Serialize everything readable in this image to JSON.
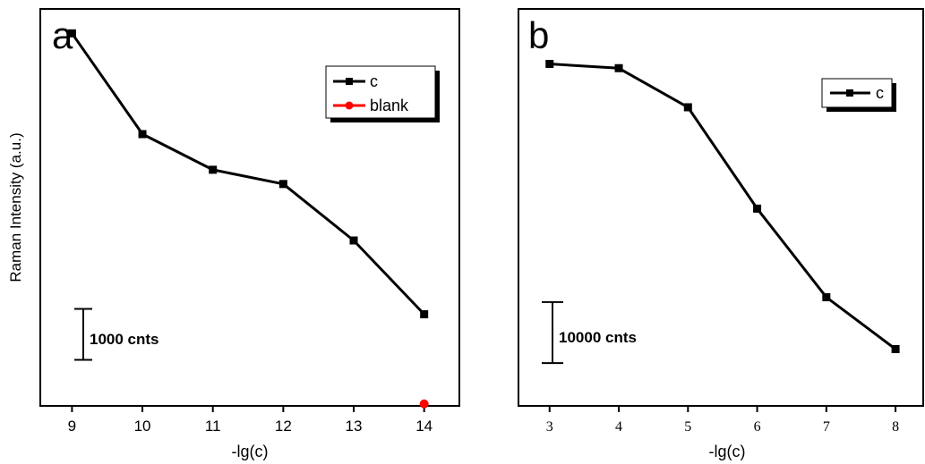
{
  "chart_data": [
    {
      "type": "line",
      "panel_label": "a",
      "xlabel": "-lg(c)",
      "ylabel": "Raman Intensity (a.u.)",
      "y_ticks_shown": false,
      "xlim": [
        8.55,
        14.5
      ],
      "ylim": [
        0,
        7800
      ],
      "x_ticks": [
        9,
        10,
        11,
        12,
        13,
        14
      ],
      "x_tick_labels": [
        "9",
        "10",
        "11",
        "12",
        "13",
        "14"
      ],
      "series": [
        {
          "name": "c",
          "color": "#000000",
          "marker": "square",
          "x": [
            9,
            10,
            11,
            12,
            13,
            14
          ],
          "y": [
            7320,
            5340,
            4640,
            4360,
            3250,
            1800
          ]
        },
        {
          "name": "blank",
          "color": "#ff0000",
          "marker": "circle",
          "x": [
            14
          ],
          "y": [
            40
          ]
        }
      ],
      "scale_bar": {
        "label": "1000 cnts",
        "value": 1000
      },
      "legend": "top-right"
    },
    {
      "type": "line",
      "panel_label": "b",
      "xlabel": "-lg(c)",
      "y_ticks_shown": false,
      "xlim": [
        2.55,
        8.4
      ],
      "ylim": [
        0,
        65000
      ],
      "x_ticks": [
        3,
        4,
        5,
        6,
        7,
        8
      ],
      "x_tick_labels": [
        "3",
        "4",
        "5",
        "6",
        "7",
        "8"
      ],
      "series": [
        {
          "name": "c",
          "color": "#000000",
          "marker": "square",
          "x": [
            3,
            4,
            5,
            6,
            7,
            8
          ],
          "y": [
            56000,
            55300,
            48900,
            32300,
            17800,
            9300
          ]
        }
      ],
      "scale_bar": {
        "label": "10000 cnts",
        "value": 10000
      },
      "legend": "top-right"
    }
  ]
}
